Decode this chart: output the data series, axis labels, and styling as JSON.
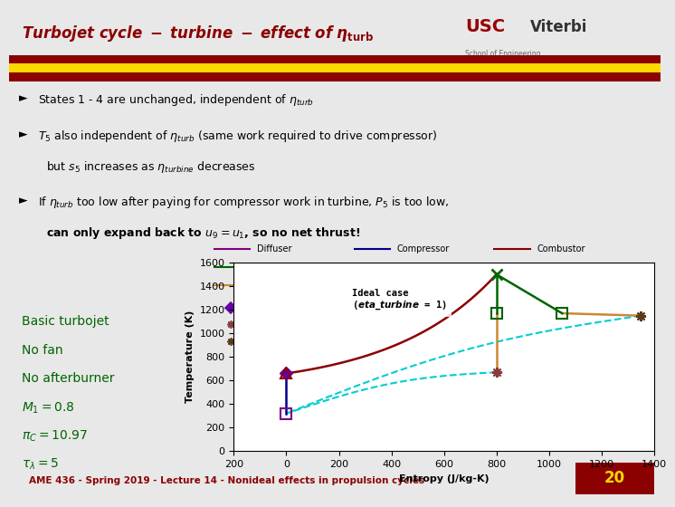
{
  "title_part1": "Turbojet cycle - turbine - effect of ",
  "title_eta": "eta_turb",
  "title_color": "#8B0000",
  "bg_color": "#E8E8E8",
  "header_bg": "#FFFFFF",
  "bar1_color": "#8B0000",
  "bar2_color": "#FFD700",
  "usc_color": "#990000",
  "viterbi_color": "#333333",
  "footer_text": "AME 436 - Spring 2019 - Lecture 14 - Nonideal effects in propulsion cycles",
  "footer_page": "20",
  "footer_text_color": "#8B0000",
  "footer_page_bg": "#8B0000",
  "footer_page_color": "#FFD700",
  "bullet_color": "#000000",
  "side_text_color": "#006400",
  "xlabel": "Entropy (J/kg-K)",
  "ylabel": "Temperature (K)",
  "xlim": [
    -200,
    1400
  ],
  "ylim": [
    0,
    1600
  ],
  "xticks": [
    -200,
    0,
    200,
    400,
    600,
    800,
    1000,
    1200,
    1400
  ],
  "yticks": [
    0,
    200,
    400,
    600,
    800,
    1000,
    1200,
    1400,
    1600
  ],
  "states": {
    "s1": 0,
    "T1": 320,
    "s2": 0,
    "T2": 660,
    "s3": 0,
    "T3": 660,
    "s4": 800,
    "T4": 1500,
    "s5i": 800,
    "T5i": 1170,
    "s5r": 1050,
    "T5r": 1170,
    "s9i": 800,
    "T9i": 670,
    "s9r": 1350,
    "T9r": 1150,
    "s1e": 0,
    "T1e": 320
  },
  "diffuser_color": "#800080",
  "compressor_color": "#00008B",
  "combustor_color": "#8B0000",
  "turbine_color": "#006400",
  "nozzle_color": "#CC8833",
  "close_color": "#00CED1",
  "turbine_fan_color": "#404040",
  "afterburner_color": "#FF69B4",
  "annotation_text1": "Ideal case",
  "annotation_text2": "(eta_turbine = 1)"
}
